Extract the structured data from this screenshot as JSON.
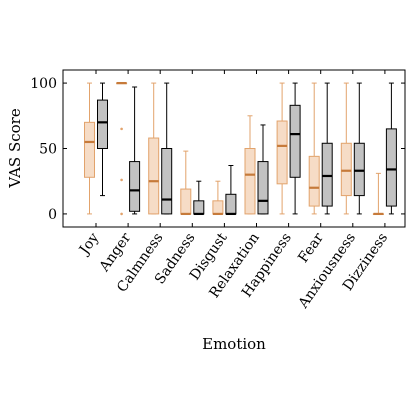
{
  "chart_data": {
    "type": "box",
    "xlabel": "Emotion",
    "ylabel": "VAS Score",
    "ylim": [
      -10,
      110
    ],
    "yticks": [
      0,
      50,
      100
    ],
    "grid": false,
    "categories": [
      "Joy",
      "Anger",
      "Calmness",
      "Sadness",
      "Disgust",
      "Relaxation",
      "Happiness",
      "Fear",
      "Anxiousness",
      "Dizziness"
    ],
    "series": [
      {
        "color_fill": "#f6dcc6",
        "color_stroke": "#e2a36c",
        "color_median": "#c67a3a",
        "boxes": [
          {
            "min": 0,
            "q1": 28,
            "median": 55,
            "q3": 70,
            "max": 100
          },
          {
            "min": 100,
            "q1": 100,
            "median": 100,
            "q3": 100,
            "max": 100
          },
          {
            "min": 0,
            "q1": 0,
            "median": 25,
            "q3": 58,
            "max": 100
          },
          {
            "min": 0,
            "q1": 0,
            "median": 0,
            "q3": 19,
            "max": 48
          },
          {
            "min": 0,
            "q1": 0,
            "median": 0,
            "q3": 10,
            "max": 25
          },
          {
            "min": 0,
            "q1": 0,
            "median": 30,
            "q3": 50,
            "max": 75
          },
          {
            "min": 0,
            "q1": 23,
            "median": 52,
            "q3": 71,
            "max": 100
          },
          {
            "min": 0,
            "q1": 6,
            "median": 20,
            "q3": 44,
            "max": 100
          },
          {
            "min": 0,
            "q1": 14,
            "median": 33,
            "q3": 54,
            "max": 100
          },
          {
            "min": 0,
            "q1": 0,
            "median": 0,
            "q3": 0,
            "max": 31
          }
        ],
        "outliers": [
          [],
          [
            0,
            26,
            65
          ],
          [],
          [],
          [],
          [],
          [],
          [],
          [],
          []
        ]
      },
      {
        "color_fill": "#c2c2c2",
        "color_stroke": "#000000",
        "color_median": "#000000",
        "boxes": [
          {
            "min": 14,
            "q1": 50,
            "median": 70,
            "q3": 87,
            "max": 100
          },
          {
            "min": 0,
            "q1": 2,
            "median": 18,
            "q3": 40,
            "max": 97
          },
          {
            "min": 0,
            "q1": 0,
            "median": 11,
            "q3": 50,
            "max": 100
          },
          {
            "min": 0,
            "q1": 0,
            "median": 0,
            "q3": 10,
            "max": 25
          },
          {
            "min": 0,
            "q1": 0,
            "median": 0,
            "q3": 15,
            "max": 37
          },
          {
            "min": 0,
            "q1": 0,
            "median": 10,
            "q3": 40,
            "max": 68
          },
          {
            "min": 0,
            "q1": 28,
            "median": 61,
            "q3": 83,
            "max": 100
          },
          {
            "min": 0,
            "q1": 6,
            "median": 29,
            "q3": 54,
            "max": 100
          },
          {
            "min": 0,
            "q1": 14,
            "median": 33,
            "q3": 54,
            "max": 100
          },
          {
            "min": 0,
            "q1": 6,
            "median": 34,
            "q3": 65,
            "max": 100
          }
        ],
        "outliers": [
          [],
          [],
          [],
          [],
          [],
          [],
          [],
          [],
          [],
          []
        ]
      }
    ]
  }
}
